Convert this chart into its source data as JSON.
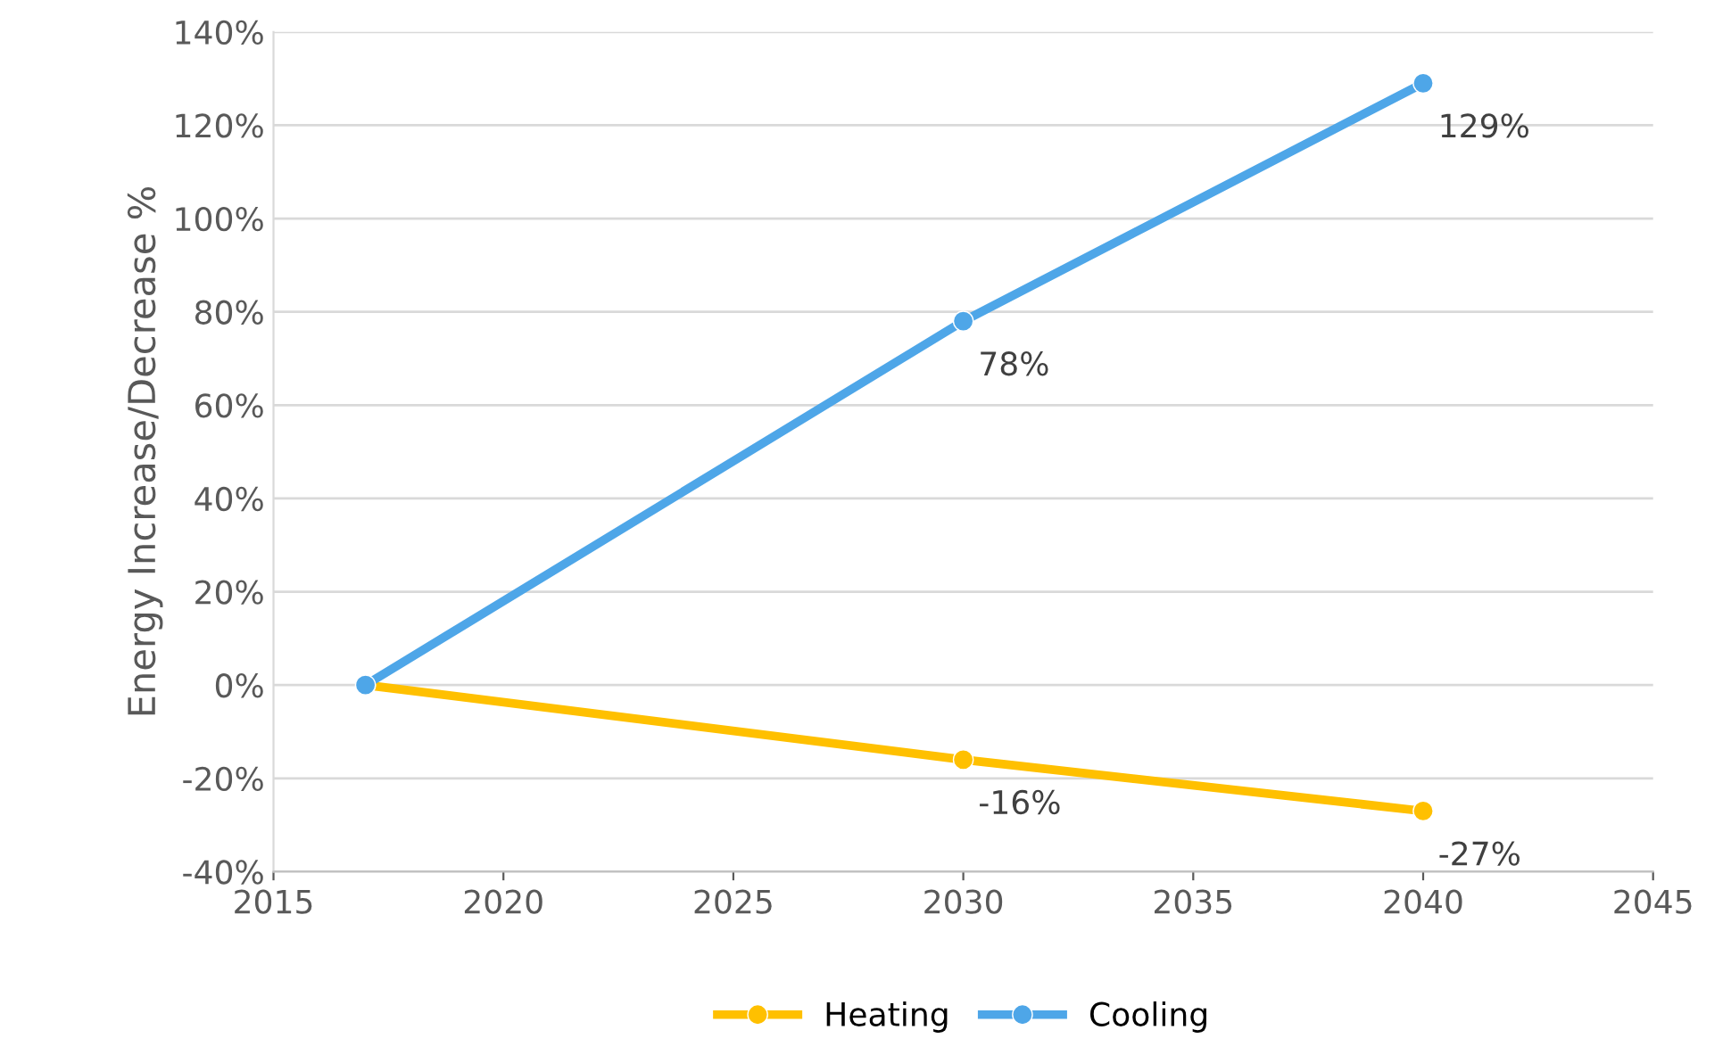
{
  "chart_data": {
    "type": "line",
    "ylabel": "Energy Increase/Decrease %",
    "x": [
      2017,
      2030,
      2040
    ],
    "series": [
      {
        "name": "Heating",
        "color": "#ffc000",
        "values": [
          0,
          -16,
          -27
        ],
        "value_labels": [
          null,
          "-16%",
          "-27%"
        ]
      },
      {
        "name": "Cooling",
        "color": "#4ea6e8",
        "values": [
          0,
          78,
          129
        ],
        "value_labels": [
          null,
          "78%",
          "129%"
        ]
      }
    ],
    "xlim": [
      2015,
      2045
    ],
    "xticks": [
      2015,
      2020,
      2025,
      2030,
      2035,
      2040,
      2045
    ],
    "ylim": [
      -40,
      140
    ],
    "yticks": [
      {
        "value": -40,
        "label": "-40%"
      },
      {
        "value": -20,
        "label": "-20%"
      },
      {
        "value": 0,
        "label": "0%"
      },
      {
        "value": 20,
        "label": "20%"
      },
      {
        "value": 40,
        "label": "40%"
      },
      {
        "value": 60,
        "label": "60%"
      },
      {
        "value": 80,
        "label": "80%"
      },
      {
        "value": 100,
        "label": "100%"
      },
      {
        "value": 120,
        "label": "120%"
      },
      {
        "value": 140,
        "label": "140%"
      }
    ],
    "grid": "y",
    "legend": "bottom",
    "marker": "circle",
    "line_style": "solid"
  }
}
